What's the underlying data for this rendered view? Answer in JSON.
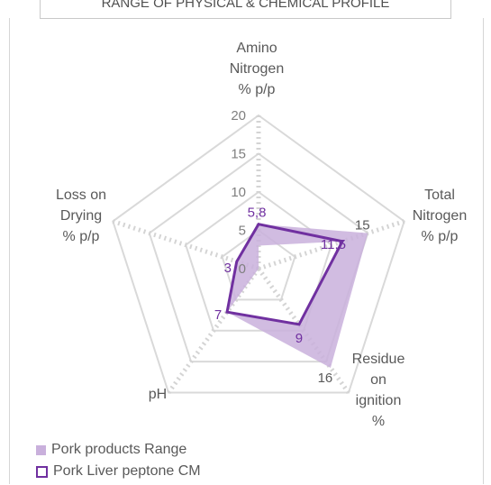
{
  "chart_data": {
    "type": "radar",
    "title": "RANGE OF PHYSICAL & CHEMICAL PROFILE",
    "axes": [
      {
        "name": "amino",
        "label": "Amino\nNitrogen\n% p/p",
        "ticks": [
          "0",
          "5",
          "10",
          "15",
          "20"
        ],
        "max": 20
      },
      {
        "name": "total",
        "label": "Total\nNitrogen\n% p/p",
        "ticks": [
          "15"
        ],
        "max": 20
      },
      {
        "name": "residue",
        "label": "Residue\non\nignition\n%",
        "ticks": [
          "16"
        ],
        "max": 20
      },
      {
        "name": "ph",
        "label": "pH",
        "ticks": [
          "7"
        ],
        "max": 20
      },
      {
        "name": "loss",
        "label": "Loss on\nDrying\n% p/p",
        "ticks": [
          "3"
        ],
        "max": 20
      }
    ],
    "series": [
      {
        "name": "Pork products Range",
        "style": "band",
        "color": "#c9b0dc",
        "max": [
          5.8,
          15,
          16,
          7,
          3
        ],
        "min": [
          3,
          11.5,
          9,
          7,
          0
        ]
      },
      {
        "name": "Pork Liver peptone CM",
        "style": "line",
        "color": "#7030a0",
        "values": [
          5.8,
          11.5,
          9,
          7,
          3
        ]
      }
    ],
    "data_labels": [
      {
        "axis": 0,
        "text": "5,8"
      },
      {
        "axis": 1,
        "text": "11,5"
      },
      {
        "axis": 2,
        "text": "9"
      },
      {
        "axis": 3,
        "text": "7"
      },
      {
        "axis": 4,
        "text": "3"
      }
    ],
    "grid": true,
    "legend_position": "bottom-left"
  }
}
